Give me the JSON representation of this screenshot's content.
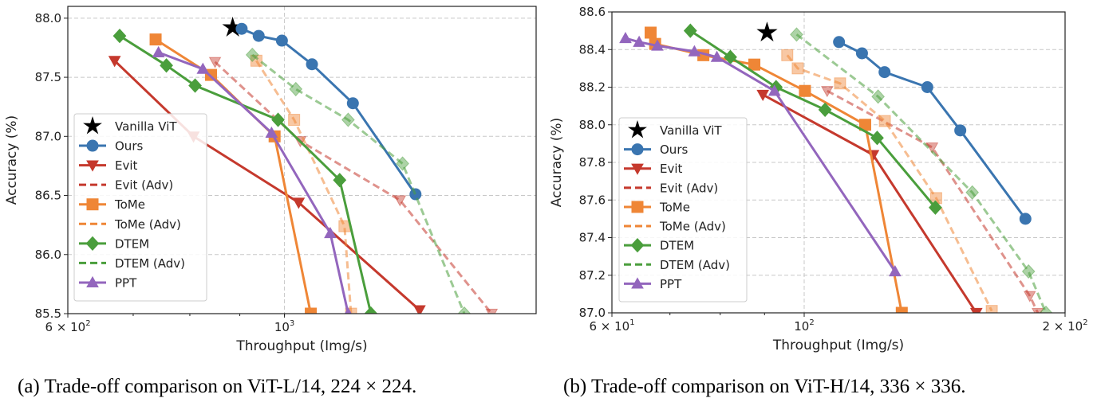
{
  "chart_data": [
    {
      "type": "line",
      "caption": "(a) Trade-off comparison on ViT-L/14, 224 × 224.",
      "xlabel": "Throughput (Img/s)",
      "ylabel": "Accuracy (%)",
      "xscale": "log",
      "xlim": [
        600,
        1810
      ],
      "ylim": [
        85.5,
        88.1
      ],
      "xticks": [
        {
          "value": 600,
          "label": "6 × 10",
          "exp": "2"
        },
        {
          "value": 1000,
          "label": "10",
          "exp": "3"
        }
      ],
      "yticks": [
        {
          "value": 85.5,
          "label": "85.5"
        },
        {
          "value": 86.0,
          "label": "86.0"
        },
        {
          "value": 86.5,
          "label": "86.5"
        },
        {
          "value": 87.0,
          "label": "87.0"
        },
        {
          "value": 87.5,
          "label": "87.5"
        },
        {
          "value": 88.0,
          "label": "88.0"
        }
      ],
      "grid": true,
      "legend_position": "lower-left",
      "series": [
        {
          "name": "Vanilla ViT",
          "color": "#000000",
          "marker": "star",
          "style": "none",
          "x": [
            885
          ],
          "y": [
            87.92
          ]
        },
        {
          "name": "Ours",
          "color": "#3a75b0",
          "marker": "circle",
          "style": "solid",
          "x": [
            904,
            941,
            994,
            1067,
            1175,
            1362
          ],
          "y": [
            87.91,
            87.85,
            87.81,
            87.61,
            87.28,
            86.51
          ]
        },
        {
          "name": "Evit",
          "color": "#c5392d",
          "marker": "triangle-down",
          "style": "solid",
          "x": [
            670,
            807,
            1034,
            1375
          ],
          "y": [
            87.64,
            87.0,
            86.44,
            85.53
          ]
        },
        {
          "name": "Evit (Adv)",
          "color": "#c5392d",
          "marker": "triangle-down",
          "style": "dashed",
          "x": [
            849,
            1038,
            1313,
            1630
          ],
          "y": [
            87.63,
            86.96,
            86.46,
            85.5
          ]
        },
        {
          "name": "ToMe",
          "color": "#ef8636",
          "marker": "square",
          "style": "solid",
          "x": [
            738,
            841,
            977,
            1064
          ],
          "y": [
            87.82,
            87.52,
            87.0,
            85.5
          ]
        },
        {
          "name": "ToMe (Adv)",
          "color": "#ef8636",
          "marker": "square",
          "style": "dashed",
          "x": [
            936,
            1023,
            1152,
            1170
          ],
          "y": [
            87.64,
            87.14,
            86.24,
            85.5
          ]
        },
        {
          "name": "DTEM",
          "color": "#4a9e3c",
          "marker": "diamond",
          "style": "solid",
          "x": [
            678,
            757,
            810,
            985,
            1139,
            1226
          ],
          "y": [
            87.85,
            87.6,
            87.43,
            87.14,
            86.63,
            85.5
          ]
        },
        {
          "name": "DTEM (Adv)",
          "color": "#4a9e3c",
          "marker": "diamond",
          "style": "dashed",
          "x": [
            927,
            1027,
            1162,
            1321,
            1528
          ],
          "y": [
            87.69,
            87.4,
            87.14,
            86.77,
            85.5
          ]
        },
        {
          "name": "PPT",
          "color": "#9366bd",
          "marker": "triangle-up",
          "style": "solid",
          "x": [
            743,
            825,
            970,
            1114,
            1162
          ],
          "y": [
            87.71,
            87.57,
            87.03,
            86.18,
            85.5
          ]
        }
      ]
    },
    {
      "type": "line",
      "caption": "(b) Trade-off comparison on ViT-H/14, 336 × 336.",
      "xlabel": "Throughput (Img/s)",
      "ylabel": "Accuracy (%)",
      "xscale": "log",
      "xlim": [
        60,
        200
      ],
      "ylim": [
        87.0,
        88.6
      ],
      "xticks": [
        {
          "value": 60,
          "label": "6 × 10",
          "exp": "1"
        },
        {
          "value": 100,
          "label": "10",
          "exp": "2"
        },
        {
          "value": 200,
          "label": "2 × 10",
          "exp": "2"
        }
      ],
      "yticks": [
        {
          "value": 87.0,
          "label": "87.0"
        },
        {
          "value": 87.2,
          "label": "87.2"
        },
        {
          "value": 87.4,
          "label": "87.4"
        },
        {
          "value": 87.6,
          "label": "87.6"
        },
        {
          "value": 87.8,
          "label": "87.8"
        },
        {
          "value": 88.0,
          "label": "88.0"
        },
        {
          "value": 88.2,
          "label": "88.2"
        },
        {
          "value": 88.4,
          "label": "88.4"
        },
        {
          "value": 88.6,
          "label": "88.6"
        }
      ],
      "grid": true,
      "legend_position": "lower-left",
      "series": [
        {
          "name": "Vanilla ViT",
          "color": "#000000",
          "marker": "star",
          "style": "none",
          "x": [
            90.6
          ],
          "y": [
            88.49
          ]
        },
        {
          "name": "Ours",
          "color": "#3a75b0",
          "marker": "circle",
          "style": "solid",
          "x": [
            109.7,
            116.6,
            123.8,
            138.7,
            151.4,
            180.0
          ],
          "y": [
            88.44,
            88.38,
            88.28,
            88.2,
            87.97,
            87.5
          ]
        },
        {
          "name": "Evit",
          "color": "#c5392d",
          "marker": "triangle-down",
          "style": "solid",
          "x": [
            89.6,
            120.1,
            158.0
          ],
          "y": [
            88.16,
            87.84,
            87.0
          ]
        },
        {
          "name": "Evit (Adv)",
          "color": "#c5392d",
          "marker": "triangle-down",
          "style": "dashed",
          "x": [
            106.3,
            140.5,
            182.1,
            186.0
          ],
          "y": [
            88.18,
            87.88,
            87.09,
            87.0
          ]
        },
        {
          "name": "ToMe",
          "color": "#ef8636",
          "marker": "square",
          "style": "solid",
          "x": [
            66.5,
            67.3,
            76.5,
            87.6,
            100.2,
            117.6,
            129.6
          ],
          "y": [
            88.49,
            88.43,
            88.37,
            88.32,
            88.18,
            88.0,
            87.0
          ]
        },
        {
          "name": "ToMe (Adv)",
          "color": "#ef8636",
          "marker": "square",
          "style": "dashed",
          "x": [
            95.6,
            98.3,
            110.0,
            123.9,
            142.0,
            164.6
          ],
          "y": [
            88.37,
            88.3,
            88.22,
            88.02,
            87.61,
            87.01
          ]
        },
        {
          "name": "DTEM",
          "color": "#4a9e3c",
          "marker": "diamond",
          "style": "solid",
          "x": [
            73.9,
            82.2,
            92.8,
            105.7,
            121.4,
            141.7
          ],
          "y": [
            88.5,
            88.36,
            88.2,
            88.08,
            87.93,
            87.56
          ]
        },
        {
          "name": "DTEM (Adv)",
          "color": "#4a9e3c",
          "marker": "diamond",
          "style": "dashed",
          "x": [
            98.0,
            121.7,
            156.3,
            181.5,
            190.1
          ],
          "y": [
            88.48,
            88.15,
            87.64,
            87.22,
            87.0
          ]
        },
        {
          "name": "PPT",
          "color": "#9366bd",
          "marker": "triangle-up",
          "style": "solid",
          "x": [
            62.2,
            64.5,
            67.7,
            74.7,
            79.3,
            92.4,
            127.3
          ],
          "y": [
            88.46,
            88.44,
            88.42,
            88.39,
            88.36,
            88.18,
            87.22
          ]
        }
      ]
    }
  ]
}
